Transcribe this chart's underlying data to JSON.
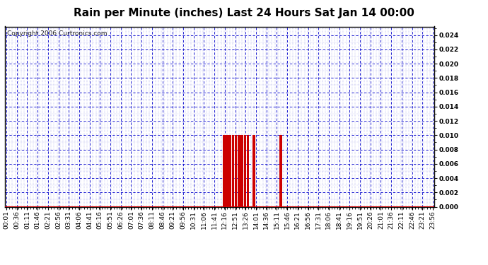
{
  "title": "Rain per Minute (inches) Last 24 Hours Sat Jan 14 00:00",
  "copyright": "Copyright 2006 Curtronics.com",
  "background_color": "#ffffff",
  "plot_background": "#ffffff",
  "bar_color": "#cc0000",
  "grid_color": "#0000cc",
  "axis_color": "#000000",
  "ylim": [
    0.0,
    0.0252
  ],
  "yticks": [
    0.0,
    0.002,
    0.004,
    0.006,
    0.008,
    0.01,
    0.012,
    0.014,
    0.016,
    0.018,
    0.02,
    0.022,
    0.024
  ],
  "n_xsteps": 144,
  "xtick_labels": [
    "00:01",
    "00:36",
    "01:11",
    "01:46",
    "02:21",
    "02:56",
    "03:31",
    "04:06",
    "04:41",
    "05:16",
    "05:51",
    "06:26",
    "07:01",
    "07:36",
    "08:11",
    "08:46",
    "09:21",
    "09:56",
    "10:31",
    "11:06",
    "11:41",
    "12:16",
    "12:51",
    "13:26",
    "14:01",
    "14:36",
    "15:11",
    "15:46",
    "16:21",
    "16:56",
    "17:31",
    "18:06",
    "18:41",
    "19:16",
    "19:51",
    "20:26",
    "21:01",
    "21:36",
    "22:11",
    "22:46",
    "23:21",
    "23:56"
  ],
  "rain_times": [
    73,
    74,
    75,
    76,
    77,
    78,
    79,
    80,
    81,
    83,
    92
  ],
  "rain_values": [
    0.01,
    0.01,
    0.01,
    0.01,
    0.01,
    0.01,
    0.01,
    0.01,
    0.01,
    0.01,
    0.01
  ],
  "title_fontsize": 11,
  "tick_fontsize": 6.5,
  "copyright_fontsize": 6.5,
  "ylabel_fontweight": "bold"
}
